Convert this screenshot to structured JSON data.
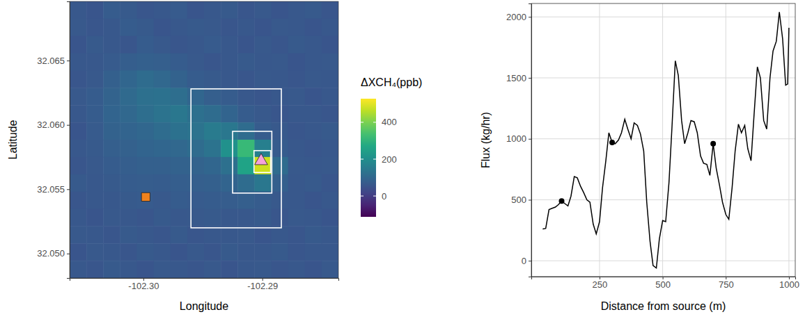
{
  "chart_data": [
    {
      "type": "heatmap",
      "xlabel": "Longitude",
      "ylabel": "Latitude",
      "xlim": [
        -102.3062,
        -102.2836
      ],
      "ylim": [
        32.0481,
        32.0696
      ],
      "xticks": [
        {
          "value": -102.3,
          "label": "-102.30"
        },
        -102.29
      ],
      "yticks": [
        {
          "value": 32.05,
          "label": "32.050"
        },
        32.055,
        {
          "value": 32.06,
          "label": "32.060"
        },
        32.065
      ],
      "cells": [
        [
          60,
          55,
          70,
          65,
          58,
          62,
          68,
          55,
          60,
          66,
          59,
          63,
          57,
          61,
          65,
          58
        ],
        [
          64,
          58,
          62,
          70,
          66,
          55,
          60,
          67,
          63,
          58,
          62,
          56,
          64,
          60,
          57,
          62
        ],
        [
          57,
          66,
          60,
          58,
          72,
          64,
          58,
          62,
          68,
          60,
          55,
          63,
          59,
          66,
          61,
          56
        ],
        [
          62,
          60,
          68,
          75,
          80,
          78,
          70,
          64,
          58,
          62,
          66,
          60,
          63,
          57,
          60,
          64
        ],
        [
          58,
          64,
          80,
          95,
          110,
          100,
          85,
          72,
          66,
          60,
          58,
          64,
          61,
          59,
          63,
          60
        ],
        [
          63,
          70,
          88,
          105,
          120,
          125,
          115,
          95,
          78,
          70,
          62,
          58,
          60,
          64,
          57,
          62
        ],
        [
          60,
          72,
          90,
          100,
          115,
          130,
          140,
          120,
          110,
          90,
          70,
          64,
          59,
          62,
          60,
          58
        ],
        [
          56,
          68,
          85,
          92,
          98,
          110,
          125,
          130,
          150,
          140,
          110,
          72,
          63,
          58,
          61,
          65
        ],
        [
          62,
          66,
          78,
          84,
          90,
          95,
          100,
          110,
          130,
          210,
          320,
          160,
          70,
          62,
          59,
          60
        ],
        [
          59,
          64,
          72,
          76,
          80,
          82,
          85,
          88,
          95,
          120,
          260,
          480,
          110,
          64,
          60,
          63
        ],
        [
          65,
          60,
          66,
          70,
          74,
          72,
          75,
          78,
          80,
          90,
          110,
          140,
          80,
          62,
          66,
          58
        ],
        [
          58,
          62,
          60,
          66,
          68,
          64,
          70,
          68,
          72,
          74,
          78,
          70,
          64,
          60,
          57,
          62
        ],
        [
          61,
          57,
          64,
          62,
          58,
          66,
          60,
          63,
          67,
          62,
          60,
          65,
          58,
          63,
          60,
          56
        ],
        [
          64,
          60,
          58,
          67,
          62,
          59,
          65,
          58,
          62,
          60,
          64,
          57,
          62,
          59,
          66,
          61
        ],
        [
          57,
          63,
          61,
          58,
          65,
          62,
          57,
          64,
          59,
          66,
          61,
          60,
          65,
          58,
          62,
          60
        ],
        [
          62,
          58,
          66,
          60,
          57,
          64,
          62,
          59,
          63,
          57,
          60,
          63,
          58,
          61,
          57,
          64
        ]
      ],
      "colorbar": {
        "title": "ΔXCH₄(ppb)",
        "range": [
          -113,
          528
        ],
        "ticks": [
          0,
          200,
          400
        ]
      },
      "boxes": [
        {
          "lon": [
            -102.296,
            -102.2884
          ],
          "lat": [
            32.052,
            32.0628
          ]
        },
        {
          "lon": [
            -102.2925,
            -102.2892
          ],
          "lat": [
            32.0547,
            32.0595
          ]
        },
        {
          "lon": [
            -102.2907,
            -102.2893
          ],
          "lat": [
            32.0563,
            32.058
          ]
        }
      ],
      "source": {
        "lon": -102.2901,
        "lat": 32.0572,
        "color": "#f4a3d9",
        "marker": "triangle"
      },
      "reference": {
        "lon": -102.2998,
        "lat": 32.0544,
        "color": "#f0821e",
        "marker": "square"
      }
    },
    {
      "type": "line",
      "xlabel": "Distance from source (m)",
      "ylabel": "Flux (kg/hr)",
      "xlim": [
        -20,
        1025
      ],
      "ylim": [
        -130,
        2110
      ],
      "xticks": [
        250,
        500,
        750,
        1000
      ],
      "yticks": [
        0,
        500,
        1000,
        1500,
        2000
      ],
      "grid": true,
      "series": [
        {
          "color": "#000000",
          "x": [
            25,
            37,
            50,
            62,
            75,
            87,
            100,
            112,
            125,
            137,
            150,
            162,
            175,
            187,
            200,
            212,
            225,
            237,
            250,
            262,
            275,
            287,
            300,
            312,
            325,
            337,
            350,
            362,
            375,
            387,
            400,
            412,
            425,
            437,
            450,
            462,
            475,
            487,
            500,
            512,
            525,
            537,
            550,
            562,
            575,
            587,
            600,
            612,
            625,
            637,
            650,
            662,
            675,
            687,
            700,
            712,
            725,
            737,
            750,
            762,
            775,
            787,
            800,
            812,
            825,
            837,
            850,
            862,
            875,
            887,
            900,
            912,
            925,
            937,
            950,
            962,
            975,
            987,
            995,
            1000
          ],
          "values": [
            260,
            265,
            420,
            430,
            440,
            460,
            490,
            470,
            450,
            530,
            690,
            680,
            610,
            560,
            500,
            480,
            300,
            220,
            320,
            600,
            820,
            1050,
            970,
            960,
            990,
            1050,
            1160,
            1080,
            1000,
            1130,
            1110,
            1040,
            900,
            480,
            160,
            -40,
            -60,
            180,
            330,
            320,
            640,
            1100,
            1640,
            1520,
            1150,
            960,
            1050,
            1150,
            1140,
            1050,
            860,
            800,
            790,
            700,
            960,
            760,
            620,
            480,
            380,
            340,
            600,
            900,
            1120,
            1050,
            1110,
            920,
            820,
            1200,
            1590,
            1500,
            1150,
            1080,
            1500,
            1720,
            1800,
            2040,
            1820,
            1440,
            1450,
            1910
          ]
        },
        {
          "type": "scatter",
          "marker": "circle",
          "color": "#000000",
          "x": [
            100,
            300,
            700
          ],
          "values": [
            490,
            970,
            960
          ]
        }
      ]
    }
  ]
}
